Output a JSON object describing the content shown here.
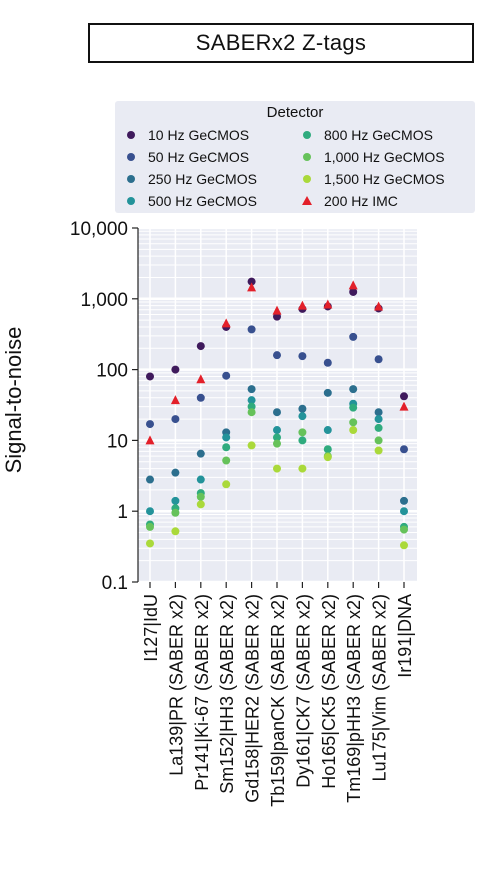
{
  "title": "SABERx2 Z-tags",
  "legend": {
    "title": "Detector",
    "items": [
      {
        "label": "10 Hz GeCMOS",
        "color": "#3f1a5c",
        "shape": "circle"
      },
      {
        "label": "50 Hz GeCMOS",
        "color": "#38508f",
        "shape": "circle"
      },
      {
        "label": "250 Hz GeCMOS",
        "color": "#2c6f8e",
        "shape": "circle"
      },
      {
        "label": "500 Hz GeCMOS",
        "color": "#23939a",
        "shape": "circle"
      },
      {
        "label": "800 Hz GeCMOS",
        "color": "#2fab7e",
        "shape": "circle"
      },
      {
        "label": "1,000 Hz GeCMOS",
        "color": "#66c25a",
        "shape": "circle"
      },
      {
        "label": "1,500 Hz GeCMOS",
        "color": "#aad93a",
        "shape": "circle"
      },
      {
        "label": "200 Hz IMC",
        "color": "#e3202a",
        "shape": "triangle"
      }
    ]
  },
  "chart_data": {
    "type": "scatter",
    "title": "SABERx2 Z-tags",
    "ylabel": "Signal-to-noise",
    "xlabel": "",
    "yscale": "log",
    "ylim": [
      0.1,
      10000
    ],
    "yticks": [
      "0.1",
      "1",
      "10",
      "100",
      "1,000",
      "10,000"
    ],
    "grid": true,
    "legend_placement": "top",
    "categories": [
      "I127|IdU",
      "La139|PR (SABER x2)",
      "Pr141|Ki-67 (SABER x2)",
      "Sm152|HH3 (SABER x2)",
      "Gd158|HER2 (SABER x2)",
      "Tb159|panCK (SABER x2)",
      "Dy161|CK7 (SABER x2)",
      "Ho165|CK5 (SABER x2)",
      "Tm169|pHH3 (SABER x2)",
      "Lu175|Vim (SABER x2)",
      "Ir191|DNA"
    ],
    "series": [
      {
        "name": "10 Hz GeCMOS",
        "values": [
          80,
          100,
          215,
          400,
          1750,
          560,
          720,
          780,
          1250,
          730,
          42
        ]
      },
      {
        "name": "50 Hz GeCMOS",
        "values": [
          17,
          20,
          40,
          82,
          370,
          160,
          155,
          125,
          290,
          140,
          7.5
        ]
      },
      {
        "name": "250 Hz GeCMOS",
        "values": [
          2.8,
          3.5,
          6.5,
          13,
          53,
          25,
          28,
          47,
          53,
          25,
          1.4
        ]
      },
      {
        "name": "500 Hz GeCMOS",
        "values": [
          1.0,
          1.4,
          2.8,
          11,
          37,
          14,
          22,
          14,
          33,
          20,
          1.0
        ]
      },
      {
        "name": "800 Hz GeCMOS",
        "values": [
          0.65,
          1.1,
          1.8,
          8,
          30,
          11,
          10,
          7.5,
          29,
          15,
          0.6
        ]
      },
      {
        "name": "1,000 Hz GeCMOS",
        "values": [
          0.6,
          0.95,
          1.6,
          5.2,
          25,
          9,
          13,
          6,
          18,
          10,
          0.55
        ]
      },
      {
        "name": "1,500 Hz GeCMOS",
        "values": [
          0.35,
          0.52,
          1.25,
          2.4,
          8.5,
          4,
          4,
          5.8,
          14,
          7.2,
          0.33
        ]
      },
      {
        "name": "200 Hz IMC",
        "values": [
          10,
          37,
          73,
          450,
          1450,
          680,
          800,
          830,
          1550,
          780,
          30
        ]
      }
    ]
  }
}
